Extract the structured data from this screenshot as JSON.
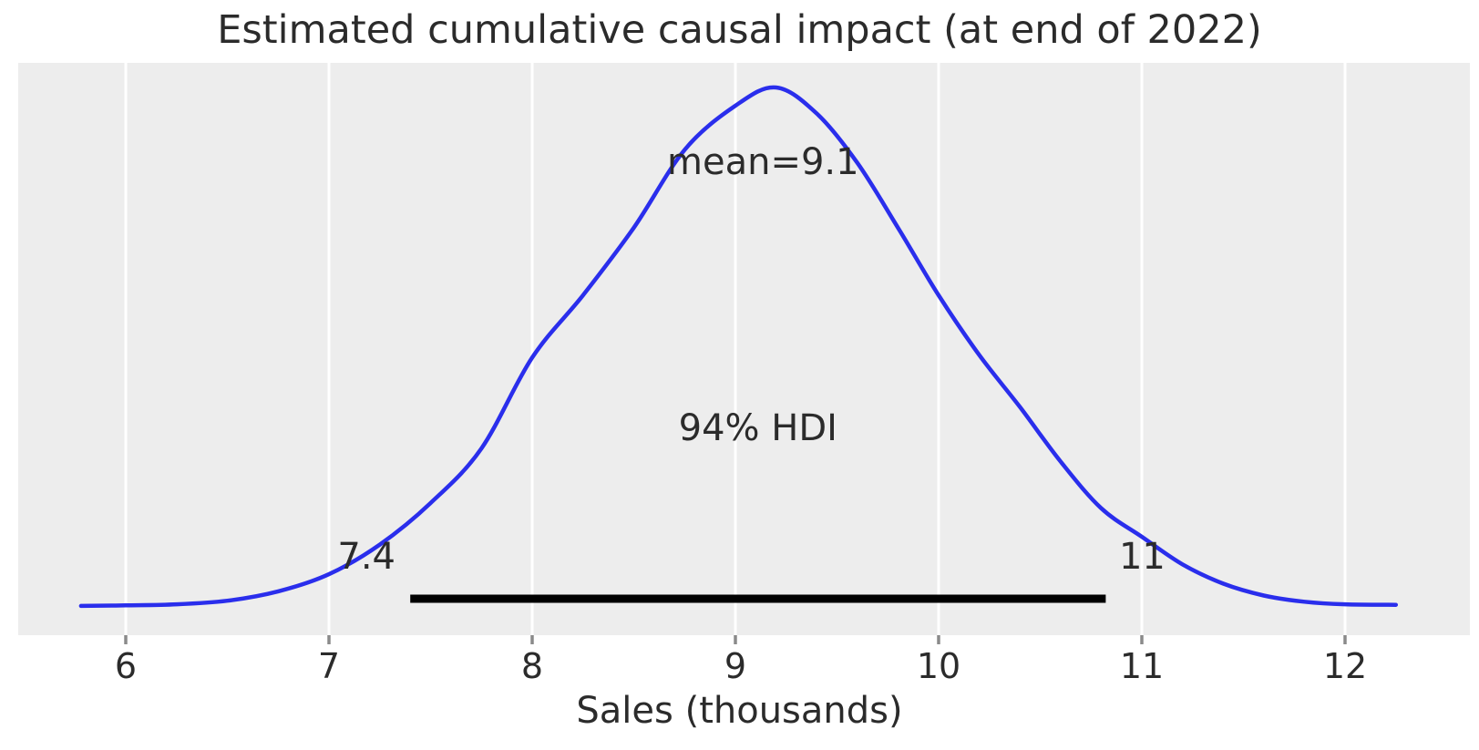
{
  "chart_data": {
    "type": "kde",
    "title": "Estimated cumulative causal impact (at end of 2022)",
    "xlabel": "Sales (thousands)",
    "x_ticks": [
      6,
      7,
      8,
      9,
      10,
      11,
      12
    ],
    "xlim": [
      5.78,
      12.25
    ],
    "grid": "vertical-white-on-gray",
    "legend": "none",
    "mean": {
      "label": "mean=9.1",
      "value": 9.1
    },
    "hdi": {
      "label": "94% HDI",
      "prob": 0.94,
      "lower": 7.4,
      "upper": 10.8,
      "lower_label": "7.4",
      "upper_label": "11"
    },
    "curve": {
      "name": "posterior-density",
      "color": "#2a2eec",
      "points": [
        [
          5.78,
          0.002
        ],
        [
          6.0,
          0.003
        ],
        [
          6.25,
          0.005
        ],
        [
          6.5,
          0.012
        ],
        [
          6.75,
          0.03
        ],
        [
          7.0,
          0.063
        ],
        [
          7.25,
          0.12
        ],
        [
          7.5,
          0.2
        ],
        [
          7.75,
          0.305
        ],
        [
          8.0,
          0.48
        ],
        [
          8.25,
          0.6
        ],
        [
          8.5,
          0.73
        ],
        [
          8.75,
          0.88
        ],
        [
          9.0,
          0.965
        ],
        [
          9.2,
          1.0
        ],
        [
          9.4,
          0.95
        ],
        [
          9.6,
          0.855
        ],
        [
          9.8,
          0.73
        ],
        [
          10.0,
          0.6
        ],
        [
          10.2,
          0.485
        ],
        [
          10.4,
          0.385
        ],
        [
          10.6,
          0.28
        ],
        [
          10.8,
          0.19
        ],
        [
          11.0,
          0.135
        ],
        [
          11.2,
          0.082
        ],
        [
          11.4,
          0.045
        ],
        [
          11.6,
          0.022
        ],
        [
          11.8,
          0.01
        ],
        [
          12.0,
          0.005
        ],
        [
          12.25,
          0.004
        ]
      ]
    },
    "colors": {
      "plot_background": "#ededed",
      "figure_background": "#ffffff",
      "gridline": "#ffffff",
      "tick_mark": "#8a8a8a",
      "text": "#2b2b2b",
      "hdi_bar": "#000000",
      "curve": "#2a2eec"
    }
  }
}
